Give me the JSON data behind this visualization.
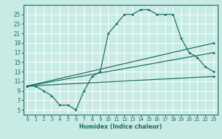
{
  "title": "",
  "xlabel": "Humidex (Indice chaleur)",
  "xlim": [
    -0.5,
    23.5
  ],
  "ylim": [
    4,
    27
  ],
  "xticks": [
    0,
    1,
    2,
    3,
    4,
    5,
    6,
    7,
    8,
    9,
    10,
    11,
    12,
    13,
    14,
    15,
    16,
    17,
    18,
    19,
    20,
    21,
    22,
    23
  ],
  "yticks": [
    5,
    7,
    9,
    11,
    13,
    15,
    17,
    19,
    21,
    23,
    25
  ],
  "bg_color": "#c8ebe5",
  "line_color": "#1a6b5e",
  "grid_color": "#ffffff",
  "lines": [
    {
      "x": [
        0,
        1,
        2,
        3,
        4,
        5,
        6,
        7,
        8,
        9,
        10,
        11,
        12,
        13,
        14,
        15,
        16,
        17,
        18,
        19,
        20,
        21,
        22,
        23
      ],
      "y": [
        10,
        10,
        9,
        8,
        6,
        6,
        5,
        9,
        12,
        13,
        21,
        23,
        25,
        25,
        26,
        26,
        25,
        25,
        25,
        20,
        17,
        16,
        14,
        13
      ]
    },
    {
      "x": [
        0,
        23
      ],
      "y": [
        10,
        19
      ]
    },
    {
      "x": [
        0,
        23
      ],
      "y": [
        10,
        17
      ]
    },
    {
      "x": [
        0,
        23
      ],
      "y": [
        10,
        12
      ]
    }
  ]
}
